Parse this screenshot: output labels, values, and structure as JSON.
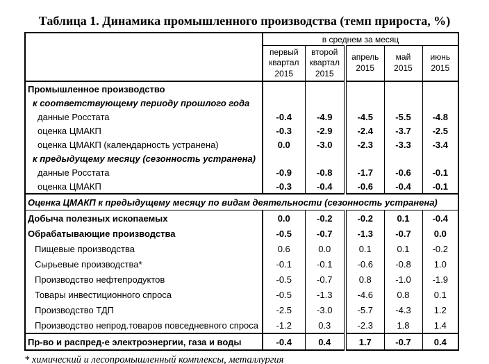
{
  "title": "Таблица 1. Динамика промышленного производства (темп прироста, %)",
  "table": {
    "group_header": "в среднем за месяц",
    "columns": [
      "первый\nквартал\n2015",
      "второй\nквартал\n2015",
      "апрель\n2015",
      "май\n2015",
      "июнь\n2015"
    ],
    "rows": [
      {
        "label": "Промышленное производство",
        "style": "group",
        "values": [
          "",
          "",
          "",
          "",
          ""
        ]
      },
      {
        "label": "к соответствующему периоду прошлого года",
        "style": "subhead",
        "values": [
          "",
          "",
          "",
          "",
          ""
        ]
      },
      {
        "label": "данные Росстата",
        "style": "databold",
        "values": [
          "-0.4",
          "-4.9",
          "-4.5",
          "-5.5",
          "-4.8"
        ]
      },
      {
        "label": "оценка ЦМАКП",
        "style": "databold",
        "values": [
          "-0.3",
          "-2.9",
          "-2.4",
          "-3.7",
          "-2.5"
        ]
      },
      {
        "label": "оценка ЦМАКП (календарность устранена)",
        "style": "databold",
        "values": [
          "0.0",
          "-3.0",
          "-2.3",
          "-3.3",
          "-3.4"
        ]
      },
      {
        "label": "к предыдущему месяцу (сезонность устранена)",
        "style": "subhead",
        "values": [
          "",
          "",
          "",
          "",
          ""
        ]
      },
      {
        "label": "данные Росстата",
        "style": "databold",
        "values": [
          "-0.9",
          "-0.8",
          "-1.7",
          "-0.6",
          "-0.1"
        ]
      },
      {
        "label": "оценка ЦМАКП",
        "style": "databold",
        "values": [
          "-0.3",
          "-0.4",
          "-0.6",
          "-0.4",
          "-0.1"
        ],
        "sep_after": true
      },
      {
        "label": "Оценка ЦМАКП к предыдущему месяцу по видам деятельности (сезонность устранена)",
        "style": "span",
        "values": [],
        "sep_after_thin": true
      },
      {
        "label": "Добыча полезных ископаемых",
        "style": "bold",
        "values": [
          "0.0",
          "-0.2",
          "-0.2",
          "0.1",
          "-0.4"
        ]
      },
      {
        "label": "Обрабатывающие производства",
        "style": "bold",
        "values": [
          "-0.5",
          "-0.7",
          "-1.3",
          "-0.7",
          "0.0"
        ]
      },
      {
        "label": "Пищевые производства",
        "style": "plain",
        "values": [
          "0.6",
          "0.0",
          "0.1",
          "0.1",
          "-0.2"
        ]
      },
      {
        "label": "Сырьевые производства*",
        "style": "plain",
        "values": [
          "-0.1",
          "-0.1",
          "-0.6",
          "-0.8",
          "1.0"
        ]
      },
      {
        "label": "Производство нефтепродуктов",
        "style": "plain",
        "values": [
          "-0.5",
          "-0.7",
          "0.8",
          "-1.0",
          "-1.9"
        ]
      },
      {
        "label": "Товары инвестиционного спроса",
        "style": "plain",
        "values": [
          "-0.5",
          "-1.3",
          "-4.6",
          "0.8",
          "0.1"
        ]
      },
      {
        "label": "Производство ТДП",
        "style": "plain",
        "values": [
          "-2.5",
          "-3.0",
          "-5.7",
          "-4.3",
          "1.2"
        ]
      },
      {
        "label": "Производство непрод.товаров повседневного спроса",
        "style": "plain",
        "values": [
          "-1.2",
          "0.3",
          "-2.3",
          "1.8",
          "1.4"
        ]
      },
      {
        "label": "Пр-во и распред-е электроэнергии, газа и воды",
        "style": "bold",
        "values": [
          "-0.4",
          "0.4",
          "1.7",
          "-0.7",
          "0.4"
        ],
        "sep_before": true
      }
    ]
  },
  "footnote": "* химический и лесопромышленный комплексы, металлургия"
}
